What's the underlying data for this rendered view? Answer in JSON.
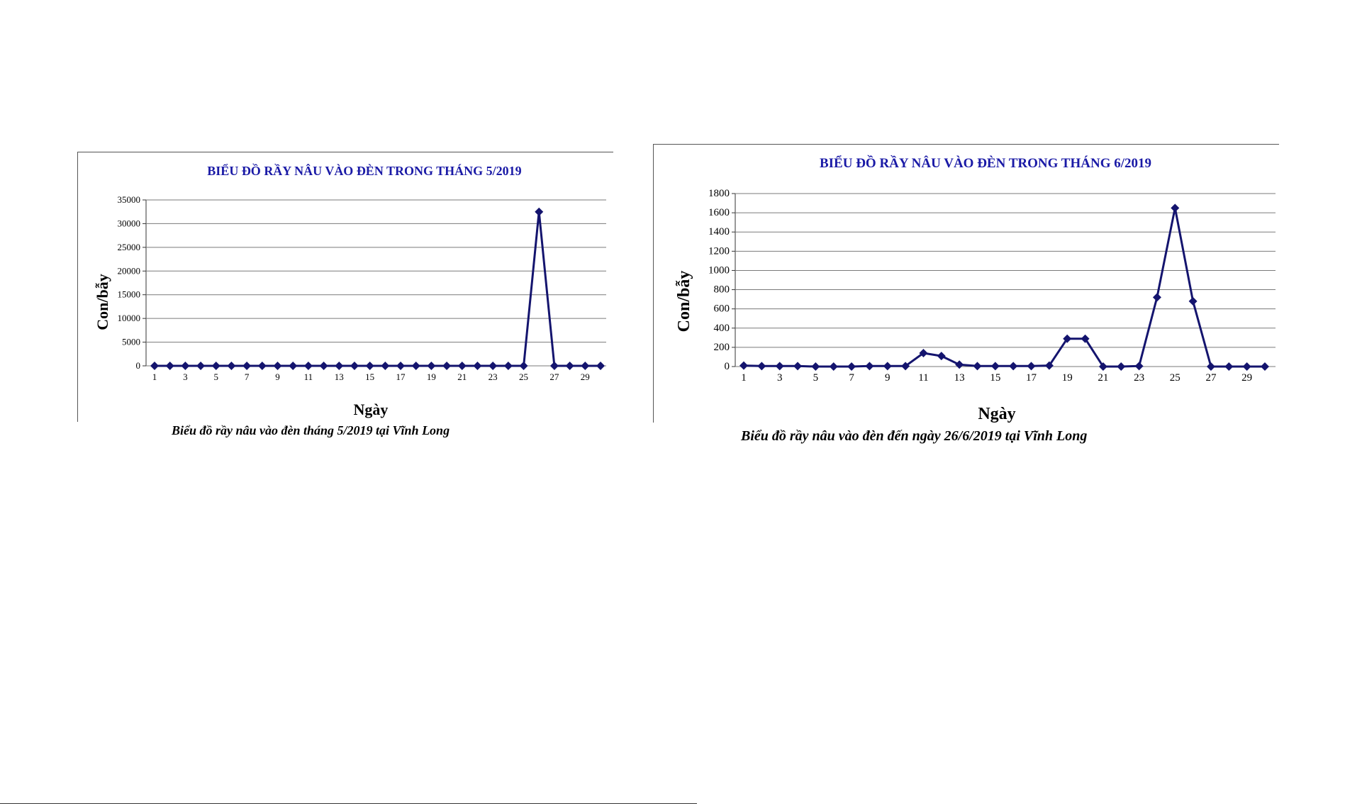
{
  "chart_data": [
    {
      "type": "line",
      "title": "BIỂU ĐỒ RẦY NÂU VÀO ĐÈN TRONG THÁNG 5/2019",
      "xlabel": "Ngày",
      "ylabel": "Con/bẫy",
      "x": [
        1,
        2,
        3,
        4,
        5,
        6,
        7,
        8,
        9,
        10,
        11,
        12,
        13,
        14,
        15,
        16,
        17,
        18,
        19,
        20,
        21,
        22,
        23,
        24,
        25,
        26,
        27,
        28,
        29,
        30
      ],
      "x_tick_labels": [
        "1",
        "3",
        "5",
        "7",
        "9",
        "11",
        "13",
        "15",
        "17",
        "19",
        "21",
        "23",
        "25",
        "27",
        "29"
      ],
      "series": [
        {
          "values": [
            0,
            0,
            0,
            0,
            0,
            0,
            0,
            0,
            0,
            0,
            0,
            0,
            0,
            0,
            0,
            0,
            0,
            0,
            0,
            0,
            0,
            0,
            0,
            0,
            0,
            32500,
            0,
            0,
            0,
            0
          ]
        }
      ],
      "ylim": [
        0,
        35000
      ],
      "y_ticks": [
        "0",
        "5000",
        "10000",
        "15000",
        "20000",
        "25000",
        "30000",
        "35000"
      ],
      "grid": true,
      "legend": false,
      "caption": "Biểu đồ rầy nâu vào đèn tháng 5/2019 tại Vĩnh Long"
    },
    {
      "type": "line",
      "title": "BIỂU ĐỒ RẦY NÂU VÀO ĐÈN TRONG THÁNG 6/2019",
      "xlabel": "Ngày",
      "ylabel": "Con/bẫy",
      "x": [
        1,
        2,
        3,
        4,
        5,
        6,
        7,
        8,
        9,
        10,
        11,
        12,
        13,
        14,
        15,
        16,
        17,
        18,
        19,
        20,
        21,
        22,
        23,
        24,
        25,
        26,
        27,
        28,
        29,
        30
      ],
      "x_tick_labels": [
        "1",
        "3",
        "5",
        "7",
        "9",
        "11",
        "13",
        "15",
        "17",
        "19",
        "21",
        "23",
        "25",
        "27",
        "29"
      ],
      "series": [
        {
          "values": [
            10,
            5,
            5,
            5,
            0,
            0,
            0,
            5,
            5,
            5,
            140,
            110,
            20,
            5,
            5,
            5,
            5,
            10,
            290,
            290,
            0,
            0,
            5,
            720,
            1650,
            680,
            0,
            0,
            0,
            0
          ]
        }
      ],
      "ylim": [
        0,
        1800
      ],
      "y_ticks": [
        "0",
        "200",
        "400",
        "600",
        "800",
        "1000",
        "1200",
        "1400",
        "1600",
        "1800"
      ],
      "grid": true,
      "legend": false,
      "caption": "Biểu đồ rầy nâu vào đèn đến ngày 26/6/2019 tại Vĩnh Long"
    }
  ],
  "colors": {
    "title": "#1a1aa6",
    "series": "#14146e",
    "grid": "#7a7a7a",
    "text": "#000000"
  }
}
